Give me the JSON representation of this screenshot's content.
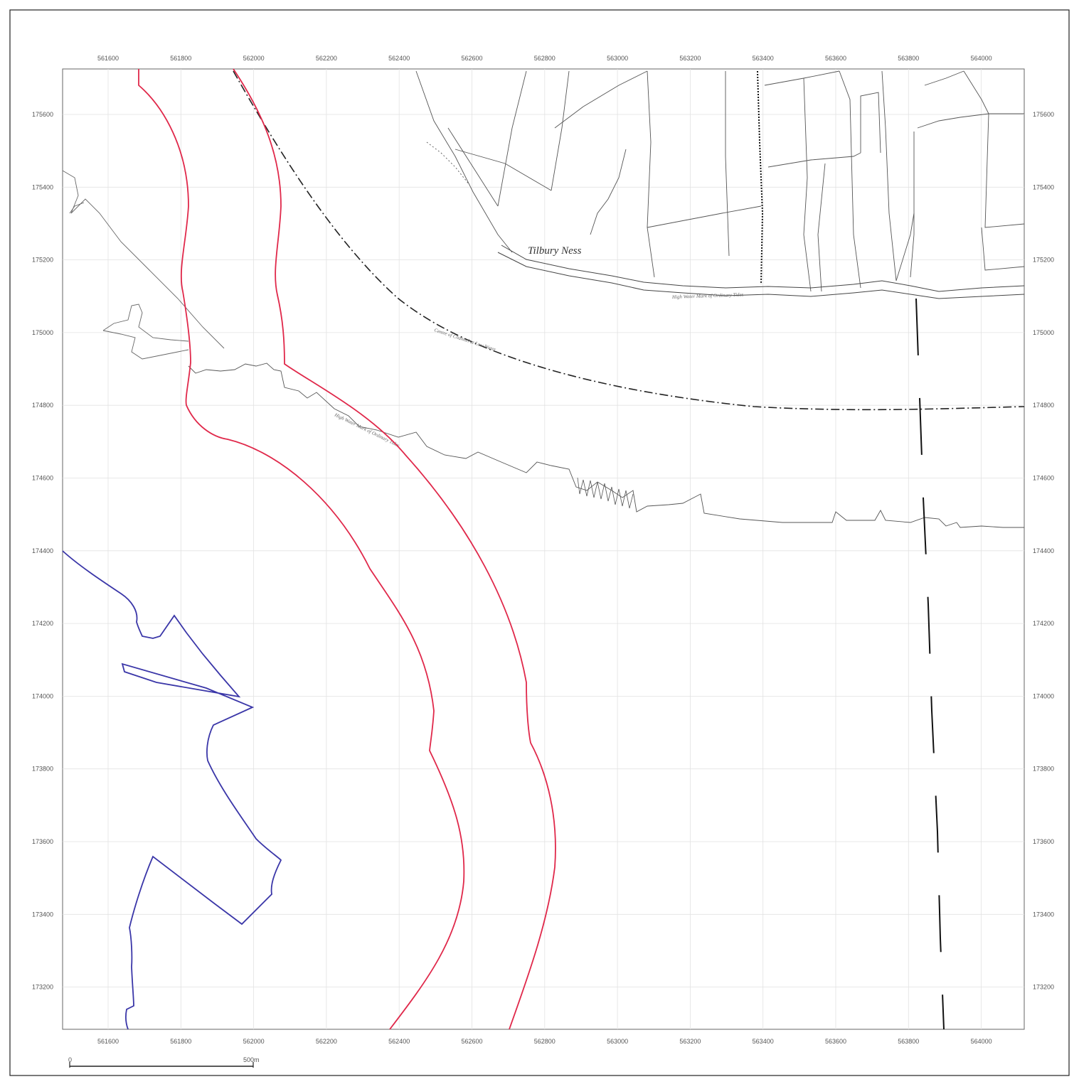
{
  "map": {
    "place_label": "Tilbury Ness",
    "channel_label": "Centre of Channel at Low Water",
    "high_water_label": "High Water Mark of Ordinary Tides",
    "scale_bar": {
      "start_label": "0",
      "end_label": "500m",
      "length_m": 500
    },
    "colors": {
      "red_boundary": "#e0284a",
      "blue_boundary": "#3a36a8",
      "historic_linework": "#444444",
      "grid": "#e2e2e2",
      "frame": "#222222"
    },
    "grid": {
      "eastings": [
        "561600",
        "561800",
        "562000",
        "562200",
        "562400",
        "562600",
        "562800",
        "563000",
        "563200",
        "563400",
        "563600",
        "563800",
        "564000"
      ],
      "northings": [
        "175600",
        "175400",
        "175200",
        "175000",
        "174800",
        "174600",
        "174400",
        "174200",
        "174000",
        "173800",
        "173600",
        "173400",
        "173200"
      ]
    }
  }
}
